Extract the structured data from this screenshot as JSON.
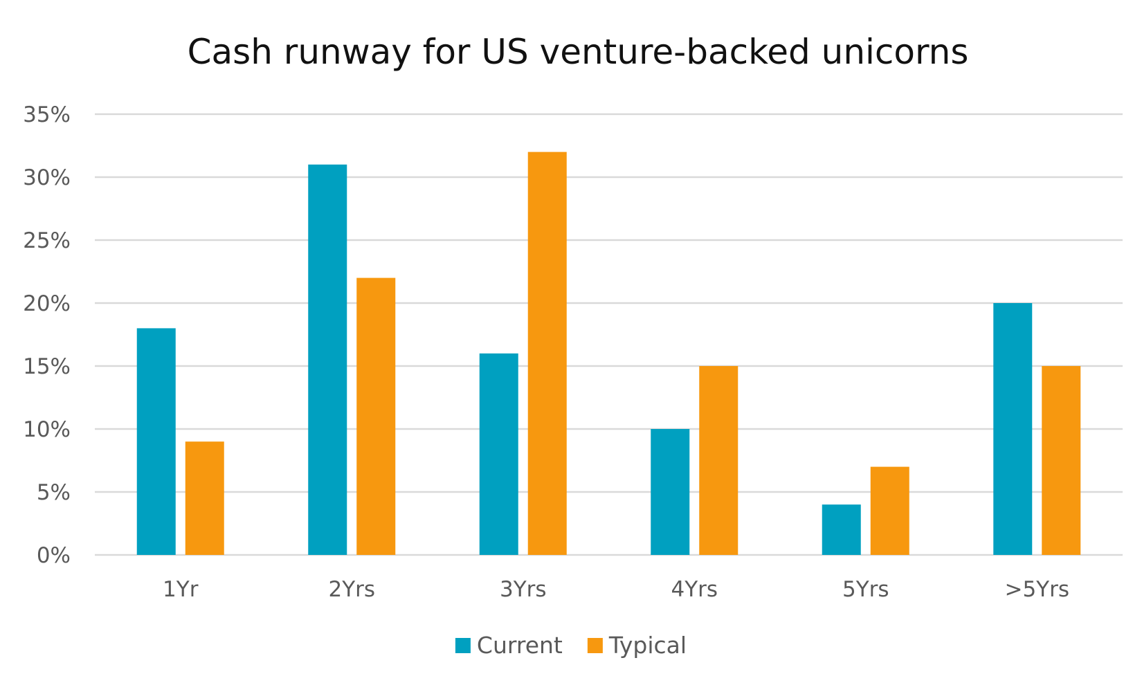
{
  "chart_data": {
    "type": "bar",
    "title": "Cash runway for US venture-backed unicorns",
    "xlabel": "",
    "ylabel": "",
    "categories": [
      "1Yr",
      "2Yrs",
      "3Yrs",
      "4Yrs",
      "5Yrs",
      ">5Yrs"
    ],
    "series": [
      {
        "name": "Current",
        "color": "#00a0c0",
        "values": [
          18,
          31,
          16,
          10,
          4,
          20
        ]
      },
      {
        "name": "Typical",
        "color": "#f7980f",
        "values": [
          9,
          22,
          32,
          15,
          7,
          15
        ]
      }
    ],
    "ylim": [
      0,
      35
    ],
    "yticks": [
      0,
      5,
      10,
      15,
      20,
      25,
      30,
      35
    ],
    "ytick_labels": [
      "0%",
      "5%",
      "10%",
      "15%",
      "20%",
      "25%",
      "30%",
      "35%"
    ],
    "grid": true,
    "legend_position": "bottom"
  }
}
